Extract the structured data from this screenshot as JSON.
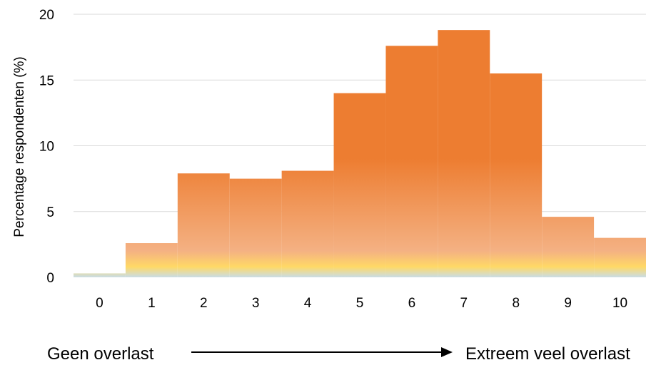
{
  "chart_data": {
    "type": "bar",
    "categories": [
      "0",
      "1",
      "2",
      "3",
      "4",
      "5",
      "6",
      "7",
      "8",
      "9",
      "10"
    ],
    "values": [
      0.3,
      2.6,
      7.9,
      7.5,
      8.1,
      14.0,
      17.6,
      18.8,
      15.5,
      4.6,
      3.0
    ],
    "ylabel": "Percentage respondenten (%)",
    "xlabel": "",
    "ylim": [
      0,
      20
    ],
    "yticks": [
      0,
      5,
      10,
      15,
      20
    ],
    "grid": "horizontal",
    "legend": "none",
    "colors": {
      "bar_top": "#ED7D31",
      "bar_mid": "#F4B183",
      "bar_low": "#FFD966",
      "bar_base": "#C9DDE6",
      "gridline": "#D9D9D9"
    }
  },
  "scale": {
    "left_label": "Geen overlast",
    "right_label": "Extreem veel overlast",
    "arrow_icon": "right-arrow-icon"
  }
}
